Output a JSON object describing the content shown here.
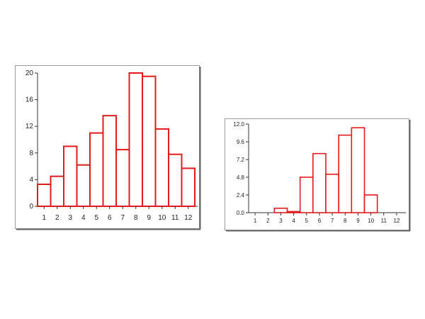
{
  "chart_data": [
    {
      "type": "bar",
      "categories": [
        "1",
        "2",
        "3",
        "4",
        "5",
        "6",
        "7",
        "8",
        "9",
        "10",
        "11",
        "12"
      ],
      "values": [
        3.3,
        4.5,
        9.0,
        6.2,
        11.0,
        13.6,
        8.5,
        20.0,
        19.5,
        11.6,
        7.8,
        5.7
      ],
      "title": "",
      "xlabel": "",
      "ylabel": "",
      "ylim": [
        0,
        20
      ],
      "yticks": [
        "0",
        "4",
        "8",
        "12",
        "16",
        "20"
      ],
      "bar_color": "#e41a1c",
      "grid": false
    },
    {
      "type": "bar",
      "categories": [
        "1",
        "2",
        "3",
        "4",
        "5",
        "6",
        "7",
        "8",
        "9",
        "10",
        "11",
        "12"
      ],
      "values": [
        0,
        0,
        0.6,
        0.15,
        4.8,
        8.0,
        5.2,
        10.5,
        11.5,
        2.4,
        0,
        0
      ],
      "title": "",
      "xlabel": "",
      "ylabel": "",
      "ylim": [
        0,
        12
      ],
      "yticks": [
        "0.0",
        "2.4",
        "4.8",
        "7.2",
        "9.6",
        "12.0"
      ],
      "bar_color": "#e41a1c",
      "grid": false
    }
  ]
}
